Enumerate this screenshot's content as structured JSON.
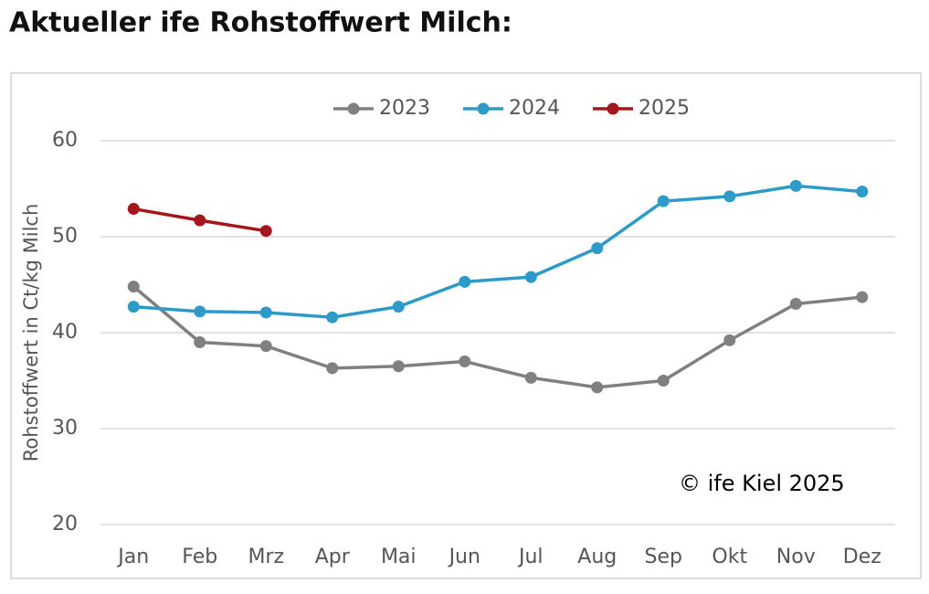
{
  "page_title": "Aktueller ife Rohstoffwert Milch:",
  "chart_data": {
    "type": "line",
    "y_label": "Rohstoffwert in Ct/kg Milch",
    "annotation": "© ife Kiel 2025",
    "categories": [
      "Jan",
      "Feb",
      "Mrz",
      "Apr",
      "Mai",
      "Jun",
      "Jul",
      "Aug",
      "Sep",
      "Okt",
      "Nov",
      "Dez"
    ],
    "series": [
      {
        "name": "2023",
        "color": "#808080",
        "values": [
          44.8,
          39.0,
          38.6,
          36.3,
          36.5,
          37.0,
          35.3,
          34.3,
          35.0,
          39.2,
          43.0,
          43.7
        ]
      },
      {
        "name": "2024",
        "color": "#2e9ac8",
        "values": [
          42.7,
          42.2,
          42.1,
          41.6,
          42.7,
          45.3,
          45.8,
          48.8,
          53.7,
          54.2,
          55.3,
          54.7
        ]
      },
      {
        "name": "2025",
        "color": "#a3161c",
        "values": [
          52.9,
          51.7,
          50.6,
          null,
          null,
          null,
          null,
          null,
          null,
          null,
          null,
          null
        ]
      }
    ],
    "ylim": [
      20,
      60
    ],
    "yticks": [
      20,
      30,
      40,
      50,
      60
    ],
    "grid": true,
    "legend": "top"
  }
}
